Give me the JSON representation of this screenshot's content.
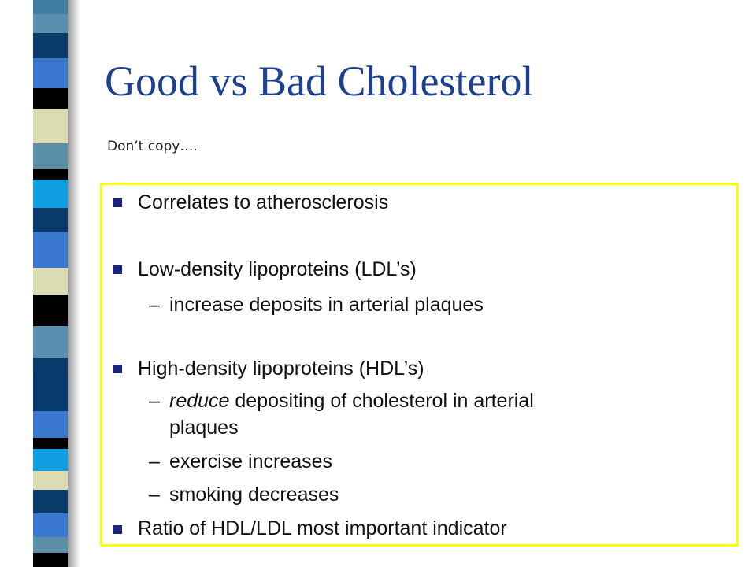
{
  "slide": {
    "title": "Good vs Bad Cholesterol",
    "note": "Don’t copy….",
    "bullets": [
      {
        "text": "Correlates to atherosclerosis"
      },
      {
        "text": "Low-density lipoproteins (LDL’s)"
      },
      {
        "text": "High-density lipoproteins (HDL’s)"
      },
      {
        "text": "Ratio of HDL/LDL most important indicator"
      }
    ],
    "sub_bullets": [
      {
        "dash": "–",
        "text": "increase deposits in arterial plaques"
      },
      {
        "dash": "–",
        "emphasis": "reduce",
        "text": " depositing of cholesterol in arterial",
        "text_cont": "plaques"
      },
      {
        "dash": "–",
        "text": "exercise increases"
      },
      {
        "dash": "–",
        "text": "smoking decreases"
      }
    ],
    "icons": {
      "bullet": "square-bullet-icon"
    },
    "colors": {
      "title": "#1f3f8f",
      "box_border": "#ffff00",
      "bullet": "#1a237e"
    }
  }
}
